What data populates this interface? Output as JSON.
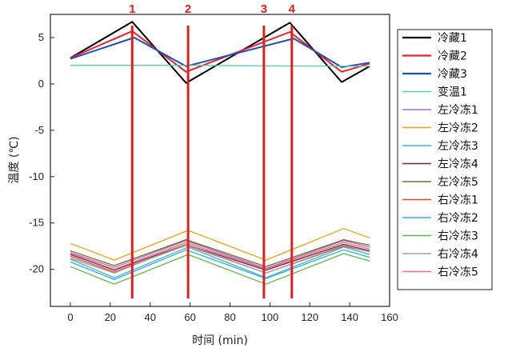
{
  "chart_data": {
    "type": "line",
    "xlabel": "时间 (min)",
    "ylabel": "温度 (℃)",
    "xlim": [
      -10,
      160
    ],
    "ylim": [
      -24,
      7.5
    ],
    "xticks": [
      "0",
      "20",
      "40",
      "60",
      "80",
      "100",
      "120",
      "140",
      "160"
    ],
    "yticks": [
      "5",
      "0",
      "-5",
      "-10",
      "-15",
      "-20"
    ],
    "legend_position": "right",
    "vertical_markers": [
      {
        "label": "1",
        "x": 31
      },
      {
        "label": "2",
        "x": 59
      },
      {
        "label": "3",
        "x": 97
      },
      {
        "label": "4",
        "x": 111
      }
    ],
    "series": [
      {
        "name": "冷藏1",
        "color": "#000000",
        "points": [
          [
            0,
            2.8
          ],
          [
            31,
            6.7
          ],
          [
            58,
            0.1
          ],
          [
            110,
            6.6
          ],
          [
            136,
            0.2
          ],
          [
            150,
            1.9
          ]
        ]
      },
      {
        "name": "冷藏2",
        "color": "#e8232a",
        "points": [
          [
            0,
            2.8
          ],
          [
            31,
            5.7
          ],
          [
            58,
            1.3
          ],
          [
            110,
            5.6
          ],
          [
            136,
            1.3
          ],
          [
            150,
            2.2
          ]
        ]
      },
      {
        "name": "冷藏3",
        "color": "#1f4fb4",
        "points": [
          [
            0,
            2.7
          ],
          [
            32,
            5.0
          ],
          [
            58,
            1.9
          ],
          [
            112,
            4.9
          ],
          [
            136,
            1.8
          ],
          [
            150,
            2.3
          ]
        ]
      },
      {
        "name": "变温1",
        "color": "#5ec7b4",
        "points": [
          [
            0,
            2.0
          ],
          [
            60,
            2.0
          ],
          [
            150,
            1.9
          ]
        ]
      },
      {
        "name": "左冷冻1",
        "color": "#9b72c8",
        "points": [
          [
            0,
            -18.2
          ],
          [
            22,
            -19.8
          ],
          [
            58,
            -16.9
          ],
          [
            98,
            -19.9
          ],
          [
            137,
            -16.9
          ],
          [
            150,
            -17.6
          ]
        ]
      },
      {
        "name": "左冷冻2",
        "color": "#e9a21e",
        "points": [
          [
            0,
            -17.2
          ],
          [
            22,
            -19.0
          ],
          [
            59,
            -15.8
          ],
          [
            98,
            -19.0
          ],
          [
            137,
            -15.6
          ],
          [
            150,
            -16.6
          ]
        ]
      },
      {
        "name": "左冷冻3",
        "color": "#39b6d4",
        "points": [
          [
            0,
            -18.9
          ],
          [
            22,
            -20.9
          ],
          [
            59,
            -17.6
          ],
          [
            98,
            -20.9
          ],
          [
            137,
            -17.6
          ],
          [
            150,
            -18.4
          ]
        ]
      },
      {
        "name": "左冷冻4",
        "color": "#7a2238",
        "points": [
          [
            0,
            -18.4
          ],
          [
            22,
            -20.1
          ],
          [
            58,
            -17.3
          ],
          [
            98,
            -20.1
          ],
          [
            137,
            -17.3
          ],
          [
            150,
            -18.0
          ]
        ]
      },
      {
        "name": "左冷冻5",
        "color": "#7f6b2a",
        "points": [
          [
            0,
            -18.0
          ],
          [
            22,
            -19.6
          ],
          [
            58,
            -16.8
          ],
          [
            98,
            -19.7
          ],
          [
            137,
            -16.8
          ],
          [
            150,
            -17.4
          ]
        ]
      },
      {
        "name": "右冷冻1",
        "color": "#e64a2e",
        "points": [
          [
            0,
            -18.6
          ],
          [
            22,
            -20.3
          ],
          [
            58,
            -17.4
          ],
          [
            98,
            -20.4
          ],
          [
            137,
            -17.5
          ],
          [
            150,
            -18.1
          ]
        ]
      },
      {
        "name": "右冷冻2",
        "color": "#3aa6e0",
        "points": [
          [
            0,
            -19.2
          ],
          [
            22,
            -21.1
          ],
          [
            58,
            -17.9
          ],
          [
            98,
            -21.0
          ],
          [
            137,
            -17.9
          ],
          [
            150,
            -18.7
          ]
        ]
      },
      {
        "name": "右冷冻3",
        "color": "#58b84a",
        "points": [
          [
            0,
            -19.7
          ],
          [
            22,
            -21.6
          ],
          [
            59,
            -18.4
          ],
          [
            98,
            -21.6
          ],
          [
            137,
            -18.3
          ],
          [
            150,
            -19.1
          ]
        ]
      },
      {
        "name": "右冷冻4",
        "color": "#a0a0a0",
        "points": [
          [
            0,
            -18.8
          ],
          [
            22,
            -20.4
          ],
          [
            58,
            -17.3
          ],
          [
            98,
            -20.4
          ],
          [
            137,
            -17.4
          ],
          [
            150,
            -18.1
          ]
        ]
      },
      {
        "name": "右冷冻5",
        "color": "#f06a8a",
        "points": [
          [
            0,
            -18.3
          ],
          [
            22,
            -20.0
          ],
          [
            58,
            -17.1
          ],
          [
            98,
            -20.0
          ],
          [
            137,
            -17.1
          ],
          [
            150,
            -17.8
          ]
        ]
      }
    ]
  }
}
